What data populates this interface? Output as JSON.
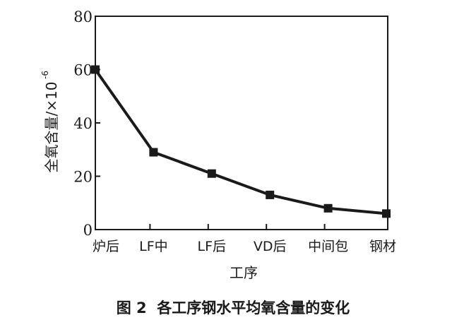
{
  "chart_data": {
    "type": "line",
    "title": "图 2  各工序钢水平均氧含量的变化",
    "xlabel": "工序",
    "ylabel": "全氧含量/×10",
    "ylabel_exponent": "-6",
    "categories": [
      "炉后",
      "LF中",
      "LF后",
      "VD后",
      "中间包",
      "钢材"
    ],
    "series": [
      {
        "name": "全氧含量",
        "values": [
          60,
          29,
          21,
          13,
          8,
          6
        ],
        "marker": "square",
        "color": "#1a1a1a"
      }
    ],
    "ylim": [
      0,
      80
    ],
    "yticks": [
      "0",
      "20",
      "40",
      "60",
      "80"
    ],
    "grid": false
  }
}
